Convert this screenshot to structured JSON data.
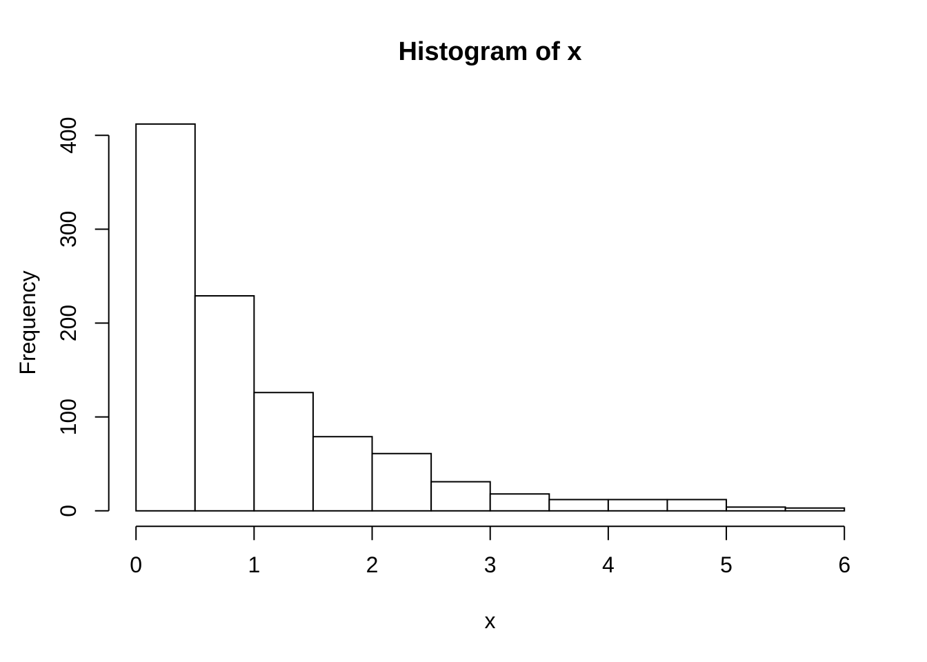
{
  "figure": {
    "title": "Histogram of x",
    "xlabel": "x",
    "ylabel": "Frequency"
  },
  "chart_data": {
    "type": "bar",
    "subtype": "histogram",
    "title": "Histogram of x",
    "xlabel": "x",
    "ylabel": "Frequency",
    "breaks": [
      0,
      0.5,
      1,
      1.5,
      2,
      2.5,
      3,
      3.5,
      4,
      4.5,
      5,
      5.5,
      6
    ],
    "counts": [
      412,
      229,
      126,
      79,
      61,
      31,
      18,
      12,
      12,
      12,
      4,
      3
    ],
    "bin_width": 0.5,
    "x_ticks": [
      "0",
      "1",
      "2",
      "3",
      "4",
      "5",
      "6"
    ],
    "x_tick_values": [
      0,
      1,
      2,
      3,
      4,
      5,
      6
    ],
    "y_ticks": [
      "0",
      "100",
      "200",
      "300",
      "400"
    ],
    "y_tick_values": [
      0,
      100,
      200,
      300,
      400
    ],
    "xlim": [
      0,
      6
    ],
    "ylim": [
      0,
      400
    ],
    "grid": "off",
    "legend": "none",
    "bar_fill": "#ffffff",
    "line_color": "#000000",
    "background": "#ffffff"
  }
}
